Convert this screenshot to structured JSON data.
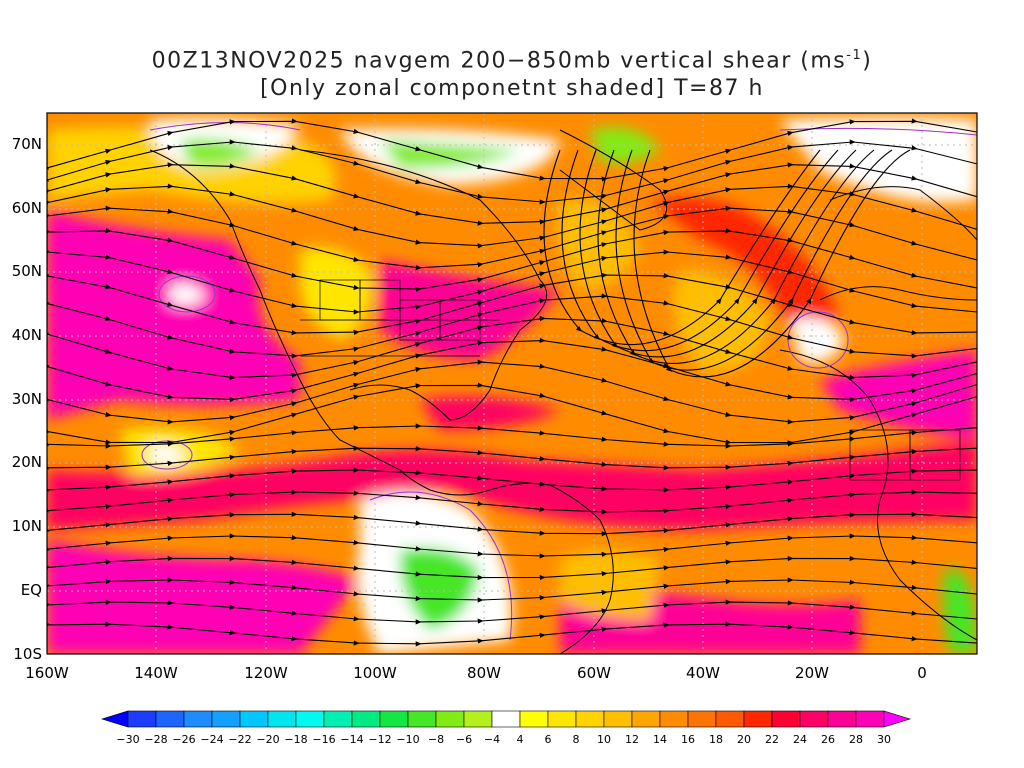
{
  "title": {
    "line1_prefix": "00Z13NOV2025 navgem 200−850mb vertical shear (ms",
    "line1_sup": "-1",
    "line1_suffix": ")",
    "line2": "[Only zonal componetnt shaded] T=87 h"
  },
  "map": {
    "lat_labels": [
      "70N",
      "60N",
      "50N",
      "40N",
      "30N",
      "20N",
      "10N",
      "EQ",
      "10S"
    ],
    "lon_labels": [
      "160W",
      "140W",
      "120W",
      "100W",
      "80W",
      "60W",
      "40W",
      "20W",
      "0"
    ],
    "lat_range": [
      -10,
      75
    ],
    "lon_range": [
      -160,
      10
    ]
  },
  "colorbar": {
    "labels": [
      "-30",
      "-28",
      "-26",
      "-24",
      "-22",
      "-20",
      "-18",
      "-16",
      "-14",
      "-12",
      "-10",
      "-8",
      "-6",
      "-4",
      "4",
      "6",
      "8",
      "10",
      "12",
      "14",
      "16",
      "18",
      "20",
      "22",
      "24",
      "26",
      "28",
      "30"
    ],
    "colors": [
      "#1e3cff",
      "#1e64ff",
      "#1e8cff",
      "#14a0ff",
      "#00c8ff",
      "#00e6f0",
      "#00faf0",
      "#00f0b4",
      "#00eb82",
      "#14e646",
      "#46e628",
      "#82eb14",
      "#b4f01e",
      "#ffffff",
      "#ffff00",
      "#ffe600",
      "#ffd200",
      "#ffbe00",
      "#ffa500",
      "#ff8c00",
      "#ff7300",
      "#ff5a00",
      "#ff2800",
      "#ff0032",
      "#ff0064",
      "#ff0096",
      "#ff00b4"
    ],
    "low_color": "#0000ff",
    "high_color": "#ff00ff"
  }
}
